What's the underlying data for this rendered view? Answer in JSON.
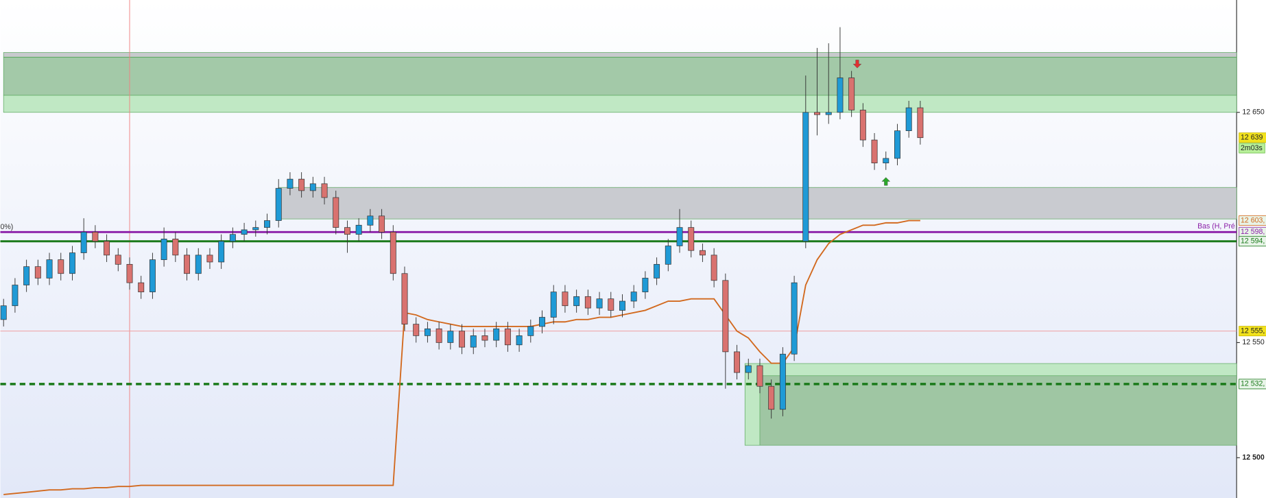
{
  "chart_data": {
    "type": "candlestick",
    "ylim": [
      12482.5,
      12698.8
    ],
    "yticks": [
      {
        "value": 12650,
        "label": "12 650"
      },
      {
        "value": 12550,
        "label": "12 550"
      },
      {
        "value": 12500,
        "label": "12 500"
      }
    ],
    "up_color": "#1f9ad6",
    "down_color": "#d9726f",
    "open": [
      12560,
      12566,
      12575,
      12583,
      12578,
      12586,
      12580,
      12589,
      12598,
      12594,
      12588,
      12584,
      12576,
      12572,
      12586,
      12595,
      12588,
      12580,
      12588,
      12585,
      12594,
      12597,
      12599,
      12600,
      12603,
      12617,
      12621,
      12616,
      12619,
      12613,
      12600,
      12597,
      12601,
      12605,
      12598,
      12580,
      12558,
      12553,
      12556,
      12550,
      12555,
      12548,
      12553,
      12551,
      12556,
      12549,
      12553,
      12557,
      12561,
      12572,
      12566,
      12570,
      12565,
      12569,
      12564,
      12568,
      12572,
      12578,
      12584,
      12592,
      12600,
      12590,
      12588,
      12577,
      12546,
      12537,
      12540,
      12531,
      12521,
      12545,
      12594,
      12650,
      12649,
      12650,
      12665,
      12651,
      12638,
      12628,
      12630,
      12642,
      12652
    ],
    "high": [
      12569,
      12578,
      12586,
      12586,
      12589,
      12589,
      12592,
      12604,
      12601,
      12597,
      12591,
      12587,
      12579,
      12589,
      12600,
      12598,
      12591,
      12591,
      12591,
      12597,
      12600,
      12602,
      12603,
      12606,
      12621,
      12624,
      12624,
      12622,
      12622,
      12616,
      12603,
      12604,
      12608,
      12608,
      12601,
      12583,
      12561,
      12559,
      12559,
      12558,
      12558,
      12556,
      12556,
      12559,
      12559,
      12556,
      12560,
      12564,
      12575,
      12575,
      12573,
      12573,
      12572,
      12572,
      12571,
      12575,
      12581,
      12587,
      12595,
      12608,
      12603,
      12593,
      12591,
      12580,
      12549,
      12543,
      12543,
      12534,
      12548,
      12579,
      12666,
      12678,
      12680,
      12687,
      12668,
      12654,
      12641,
      12633,
      12645,
      12655,
      12655
    ],
    "low": [
      12557,
      12563,
      12572,
      12575,
      12575,
      12577,
      12577,
      12586,
      12591,
      12585,
      12581,
      12573,
      12569,
      12569,
      12583,
      12585,
      12577,
      12577,
      12582,
      12582,
      12591,
      12594,
      12596,
      12597,
      12600,
      12614,
      12613,
      12613,
      12610,
      12597,
      12589,
      12594,
      12598,
      12595,
      12577,
      12555,
      12550,
      12550,
      12547,
      12547,
      12545,
      12545,
      12548,
      12548,
      12546,
      12546,
      12550,
      12554,
      12558,
      12563,
      12563,
      12562,
      12562,
      12561,
      12561,
      12565,
      12569,
      12575,
      12581,
      12589,
      12587,
      12585,
      12574,
      12530,
      12534,
      12534,
      12528,
      12517,
      12518,
      12542,
      12591,
      12640,
      12645,
      12647,
      12648,
      12635,
      12625,
      12625,
      12627,
      12639,
      12636
    ],
    "close": [
      12566,
      12575,
      12583,
      12578,
      12586,
      12580,
      12589,
      12598,
      12594,
      12588,
      12584,
      12576,
      12572,
      12586,
      12595,
      12588,
      12580,
      12588,
      12585,
      12594,
      12597,
      12599,
      12600,
      12603,
      12617,
      12621,
      12616,
      12619,
      12613,
      12600,
      12597,
      12601,
      12605,
      12598,
      12580,
      12558,
      12553,
      12556,
      12550,
      12555,
      12548,
      12553,
      12551,
      12556,
      12549,
      12553,
      12557,
      12561,
      12572,
      12566,
      12570,
      12565,
      12569,
      12564,
      12568,
      12572,
      12578,
      12584,
      12592,
      12600,
      12590,
      12588,
      12577,
      12546,
      12537,
      12540,
      12531,
      12521,
      12545,
      12576,
      12650,
      12649,
      12650,
      12665,
      12651,
      12638,
      12628,
      12630,
      12642,
      12652,
      12639
    ],
    "vwap": {
      "color": "#d2691e",
      "values": [
        12484,
        12484.5,
        12485,
        12485.5,
        12486,
        12486,
        12486.5,
        12486.5,
        12487,
        12487,
        12487.5,
        12487.5,
        12488,
        12488,
        12488,
        12488,
        12488,
        12488,
        12488,
        12488,
        12488,
        12488,
        12488,
        12488,
        12488,
        12488,
        12488,
        12488,
        12488,
        12488,
        12488,
        12488,
        12488,
        12488,
        12488,
        12563,
        12562,
        12560,
        12559,
        12558,
        12557,
        12557,
        12557,
        12557,
        12557,
        12557,
        12557,
        12558,
        12559,
        12559,
        12560,
        12560,
        12561,
        12561,
        12562,
        12563,
        12564,
        12566,
        12568,
        12568,
        12569,
        12569,
        12569,
        12562,
        12555,
        12552,
        12546,
        12541,
        12541,
        12548,
        12575,
        12586,
        12593,
        12597,
        12599,
        12601,
        12601,
        12602,
        12602,
        12603,
        12603
      ]
    },
    "zones": [
      {
        "low": 12674,
        "high": 12676,
        "start": 0,
        "color": "#c8cacd"
      },
      {
        "low": 12657.4,
        "high": 12673.9,
        "start": 0,
        "color": "#a3c9a8"
      },
      {
        "low": 12650,
        "high": 12657.4,
        "start": 0,
        "color": "#c0e8c4"
      },
      {
        "low": 12603.7,
        "high": 12617.4,
        "start": 24,
        "color": "#c9cbd0"
      },
      {
        "low": 12505.4,
        "high": 12540.9,
        "start": 64.7,
        "color": "#c0e8c4"
      },
      {
        "low": 12505.4,
        "high": 12535.6,
        "start": 66,
        "color": "#9fc6a3"
      }
    ],
    "levels": [
      {
        "value": 12639,
        "label": "12 639",
        "color": "#f2e21c",
        "line": "none"
      },
      {
        "value": 12603,
        "label": "12 603,",
        "color": "#d2691e",
        "line": "none"
      },
      {
        "value": 12598,
        "label": "12 598,",
        "color": "#8b1fa8",
        "line": "solid"
      },
      {
        "value": 12594,
        "label": "12 594,",
        "color": "#1a7a1a",
        "line": "solid"
      },
      {
        "value": 12555,
        "label": "12 555,",
        "color": "#f2e21c",
        "line": "thin"
      },
      {
        "value": 12532,
        "label": "12 532,",
        "color": "#1a7a1a",
        "line": "dashed"
      }
    ],
    "timer": "2m03s",
    "level_text": "Bas (H, Pré",
    "left_text": "0%)",
    "markers": [
      {
        "index": 74.5,
        "price": 12671,
        "dir": "down",
        "color": "#e03030"
      },
      {
        "index": 77,
        "price": 12620,
        "dir": "up",
        "color": "#2aa82a"
      }
    ],
    "cursor_index": 11
  }
}
